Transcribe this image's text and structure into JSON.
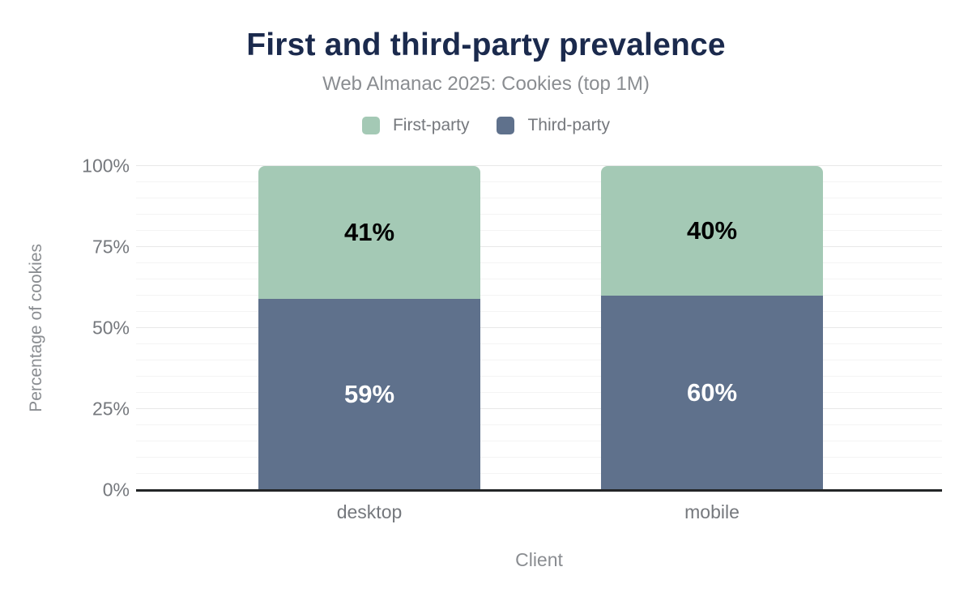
{
  "header": {
    "title": "First and third-party prevalence",
    "subtitle": "Web Almanac 2025: Cookies (top 1M)"
  },
  "chart_data": {
    "type": "bar",
    "stacked": true,
    "categories": [
      "desktop",
      "mobile"
    ],
    "series": [
      {
        "name": "First-party",
        "color": "#a4c9b5",
        "label_color": "#000000",
        "values": [
          41,
          40
        ],
        "labels": [
          "41%",
          "40%"
        ]
      },
      {
        "name": "Third-party",
        "color": "#5f718c",
        "label_color": "#ffffff",
        "values": [
          59,
          60
        ],
        "labels": [
          "59%",
          "60%"
        ]
      }
    ],
    "xlabel": "Client",
    "ylabel": "Percentage of cookies",
    "ylim": [
      0,
      100
    ],
    "yticks": [
      {
        "value": 0,
        "label": "0%"
      },
      {
        "value": 25,
        "label": "25%"
      },
      {
        "value": 50,
        "label": "50%"
      },
      {
        "value": 75,
        "label": "75%"
      },
      {
        "value": 100,
        "label": "100%"
      }
    ],
    "grid": {
      "minor_step": 5,
      "major_step": 25,
      "horizontal": true
    },
    "legend_position": "top"
  },
  "colors": {
    "title": "#1b2a4d",
    "first_party": "#a4c9b5",
    "third_party": "#5f718c",
    "axis_line": "#232527",
    "muted_text": "#75787d"
  }
}
